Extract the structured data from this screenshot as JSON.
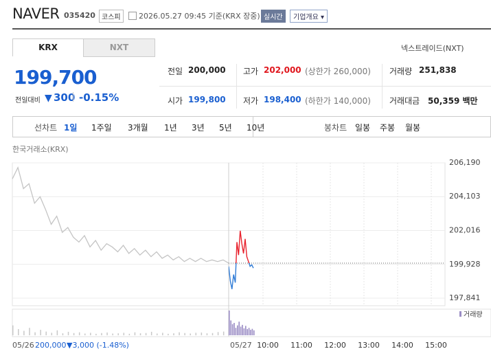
{
  "header": {
    "name": "NAVER",
    "code": "035420",
    "market": "코스피",
    "timestamp": "2026.05.27 09:45 기준(KRX 장중)",
    "realtime": "실시간",
    "company_info": "기업개요"
  },
  "tabs": {
    "items": [
      "KRX",
      "NXT"
    ],
    "nxt_link": "넥스트레이드(NXT)"
  },
  "quote": {
    "price": "199,700",
    "change_label": "전일대비",
    "change": "300",
    "change_pct": "-0.15%",
    "fields": [
      {
        "label": "전일",
        "value": "200,000"
      },
      {
        "label": "고가",
        "value": "202,000",
        "note": "(상한가 260,000)",
        "color": "#e0161d"
      },
      {
        "label": "거래량",
        "value": "251,838"
      },
      {
        "label": "시가",
        "value": "199,800",
        "color": "#1a5fd0"
      },
      {
        "label": "저가",
        "value": "198,400",
        "note": "(하한가 140,000)",
        "color": "#1a5fd0"
      },
      {
        "label": "거래대금",
        "value": "50,359 백만"
      }
    ]
  },
  "periods": {
    "line_label": "선차트",
    "line_items": [
      "1일",
      "1주일",
      "3개월",
      "1년",
      "3년",
      "5년",
      "10년"
    ],
    "candle_label": "봉차트",
    "candle_items": [
      "일봉",
      "주봉",
      "월봉"
    ]
  },
  "chart": {
    "source": "한국거래소(KRX)",
    "ylim": [
      197375,
      206190
    ],
    "yticks": [
      {
        "value": 206190,
        "label": "206,190"
      },
      {
        "value": 204103,
        "label": "204,103"
      },
      {
        "value": 202016,
        "label": "202,016"
      },
      {
        "value": 199928,
        "label": "199,928"
      },
      {
        "value": 197841,
        "label": "197,841"
      }
    ],
    "reference": 200000,
    "prev_color": "#c4c4c4",
    "up_color": "#e8212c",
    "down_color": "#2f7bd6",
    "prev_values": [
      205200,
      205900,
      204600,
      204900,
      203700,
      204100,
      203300,
      202400,
      202900,
      201900,
      202200,
      201600,
      201300,
      201700,
      201000,
      201400,
      200800,
      201200,
      201000,
      200700,
      201100,
      200600,
      200900,
      200500,
      200800,
      200400,
      200700,
      200300,
      200500,
      200200,
      200400,
      200100,
      200300,
      200100,
      200300,
      200100,
      200200,
      200100,
      200200,
      200000
    ],
    "today_values": [
      199800,
      198900,
      198400,
      199300,
      198800,
      201300,
      200500,
      202000,
      201200,
      200600,
      201500,
      200400,
      200100,
      199800,
      199900,
      199700
    ],
    "volume_label": "거래량",
    "volume_color": "#9a8cc4",
    "vlim": [
      0,
      100
    ],
    "prev_volume": [
      40,
      25,
      18,
      30,
      12,
      22,
      15,
      10,
      20,
      8,
      14,
      9,
      12,
      7,
      10,
      6,
      9,
      11,
      7,
      8,
      10,
      6,
      12,
      8,
      9,
      14,
      7,
      10,
      6,
      8,
      12,
      9,
      7,
      10,
      11,
      8,
      9,
      13,
      15,
      20
    ],
    "today_volume": [
      100,
      60,
      45,
      50,
      30,
      40,
      55,
      35,
      42,
      28,
      38,
      25,
      30,
      22,
      26,
      20
    ],
    "x_labels": [
      "05/26",
      "05/27",
      "10:00",
      "11:00",
      "12:00",
      "13:00",
      "14:00",
      "15:00"
    ],
    "prev_close": "200,000",
    "prev_change": "▼3,000 (-1.48%)"
  }
}
